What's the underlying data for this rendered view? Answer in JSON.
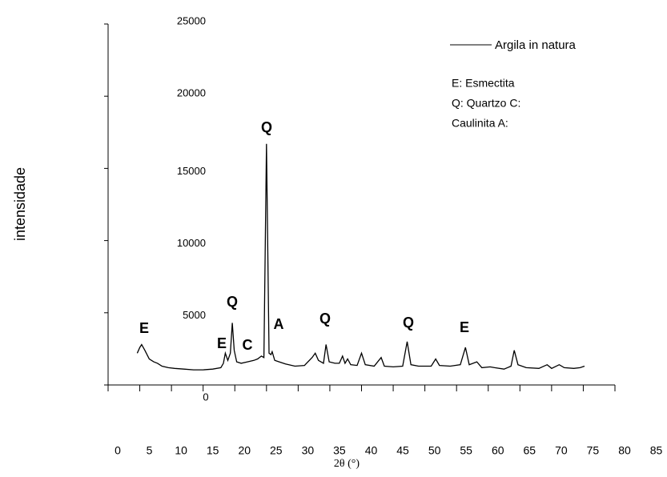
{
  "chart_data": {
    "type": "line",
    "x_label": "2θ (°)",
    "y_label": "intensidade",
    "xlim": [
      0,
      80
    ],
    "ylim": [
      0,
      25000
    ],
    "xticks": [
      0,
      5,
      10,
      15,
      20,
      25,
      30,
      35,
      40,
      45,
      50,
      55,
      60,
      65,
      70,
      75,
      80,
      85
    ],
    "yticks": [
      0,
      5000,
      10000,
      15000,
      20000,
      25000
    ],
    "series": [
      {
        "name": "Argila in natura",
        "color": "#000000",
        "x": [
          4.6,
          5.0,
          5.3,
          5.8,
          6.5,
          7.2,
          7.8,
          8.5,
          9.5,
          10.5,
          12,
          13.5,
          15,
          16.5,
          17.8,
          18.2,
          18.5,
          18.9,
          19.3,
          19.6,
          19.9,
          20.3,
          21,
          22,
          23,
          23.6,
          24.2,
          24.6,
          25.0,
          25.4,
          25.7,
          25.9,
          26.3,
          27,
          28,
          29.5,
          31,
          32.2,
          32.7,
          33.2,
          34.0,
          34.4,
          34.9,
          35.8,
          36.5,
          37.0,
          37.4,
          37.8,
          38.3,
          39.3,
          40.0,
          40.6,
          42,
          43.1,
          43.6,
          45,
          46.5,
          47.2,
          47.8,
          49,
          51.0,
          51.7,
          52.3,
          54,
          55.6,
          56.4,
          57.0,
          58.2,
          59,
          60.3,
          61,
          62.5,
          63.6,
          64.1,
          64.7,
          66,
          68,
          69.3,
          70,
          71.2,
          72,
          73.5,
          74.5,
          75.2
        ],
        "values": [
          2200,
          2600,
          2800,
          2400,
          1800,
          1600,
          1500,
          1300,
          1200,
          1150,
          1100,
          1050,
          1050,
          1100,
          1200,
          1500,
          2200,
          1700,
          2200,
          4300,
          2400,
          1600,
          1500,
          1600,
          1700,
          1800,
          2000,
          1900,
          16700,
          2200,
          2100,
          2300,
          1700,
          1600,
          1450,
          1300,
          1350,
          1900,
          2200,
          1700,
          1500,
          2800,
          1600,
          1500,
          1500,
          2000,
          1500,
          1800,
          1400,
          1350,
          2200,
          1400,
          1300,
          1900,
          1300,
          1250,
          1300,
          3000,
          1400,
          1300,
          1300,
          1800,
          1350,
          1300,
          1400,
          2600,
          1400,
          1600,
          1200,
          1250,
          1200,
          1100,
          1300,
          2400,
          1400,
          1200,
          1150,
          1400,
          1150,
          1400,
          1200,
          1150,
          1200,
          1300
        ]
      }
    ],
    "legend": "upper right",
    "annotations": [
      "E",
      "Q",
      "E",
      "C",
      "Q",
      "A",
      "Q",
      "Q",
      "E"
    ],
    "notes": [
      "E: Esmectita",
      "Q: Quartzo C:",
      "Caulinita A:"
    ]
  }
}
